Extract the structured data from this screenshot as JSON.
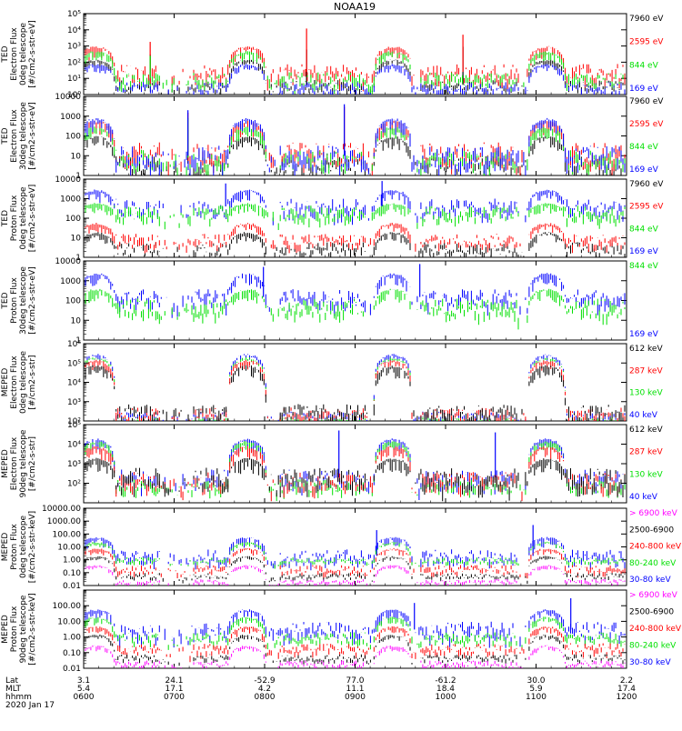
{
  "title": "NOAA19",
  "footer": {
    "row_labels": [
      "Lat",
      "MLT",
      "hhmm"
    ],
    "date": "2020 Jan 17",
    "lat": [
      "3.1",
      "24.1",
      "-52.9",
      "77.0",
      "-61.2",
      "30.0",
      "2.2"
    ],
    "mlt": [
      "5.4",
      "17.1",
      "4.2",
      "11.1",
      "18.4",
      "5.9",
      "17.4"
    ],
    "hhmm": [
      "0600",
      "0700",
      "0800",
      "0900",
      "1000",
      "1100",
      "1200"
    ]
  },
  "colors": {
    "black": "#000000",
    "red": "#ff0000",
    "green": "#00e000",
    "blue": "#0000ff",
    "magenta": "#ff00ff"
  },
  "chart_data": [
    {
      "type": "line",
      "panel": "ted-electron-0deg",
      "ylabel": [
        "TED",
        "Electron Flux",
        "0deg telescope",
        "[#/cm2-s-str-eV]"
      ],
      "yscale": "log",
      "ylim": [
        1,
        100000
      ],
      "ticks": [
        {
          "v": 1,
          "t": "10⁰"
        },
        {
          "v": 10,
          "t": "10¹"
        },
        {
          "v": 100,
          "t": "10²"
        },
        {
          "v": 1000,
          "t": "10³"
        },
        {
          "v": 10000,
          "t": "10⁴"
        },
        {
          "v": 100000,
          "t": "10⁵"
        }
      ],
      "x_range": [
        "0600",
        "1200"
      ],
      "series": [
        {
          "name": "7960 eV",
          "color": "black",
          "base": 4,
          "peak": 150,
          "spikes": [
            300,
            600,
            900
          ],
          "noise": 0.3
        },
        {
          "name": "2595 eV",
          "color": "red",
          "base": 25,
          "peak": 1000,
          "spikes": [
            1800,
            12000,
            5000
          ],
          "noise": 0.5
        },
        {
          "name": "844 eV",
          "color": "green",
          "base": 10,
          "peak": 500,
          "spikes": [
            250
          ],
          "noise": 0.4
        },
        {
          "name": "169 eV",
          "color": "blue",
          "base": 3,
          "peak": 80,
          "spikes": [],
          "noise": 0.3
        }
      ]
    },
    {
      "type": "line",
      "panel": "ted-electron-30deg",
      "ylabel": [
        "TED",
        "Electron Flux",
        "30deg telescope",
        "[#/cm2-s-str-eV]"
      ],
      "yscale": "log",
      "ylim": [
        1,
        10000
      ],
      "ticks": [
        {
          "v": 1,
          "t": "1"
        },
        {
          "v": 10,
          "t": "10"
        },
        {
          "v": 100,
          "t": "100"
        },
        {
          "v": 1000,
          "t": "1000"
        },
        {
          "v": 10000,
          "t": "10000"
        }
      ],
      "x_range": [
        "0600",
        "1200"
      ],
      "series": [
        {
          "name": "7960 eV",
          "color": "black",
          "base": 4,
          "peak": 100,
          "spikes": [
            200
          ],
          "noise": 0.4
        },
        {
          "name": "2595 eV",
          "color": "red",
          "base": 15,
          "peak": 600,
          "spikes": [
            1500,
            3000
          ],
          "noise": 0.5
        },
        {
          "name": "844 eV",
          "color": "green",
          "base": 8,
          "peak": 300,
          "spikes": [
            800
          ],
          "noise": 0.4
        },
        {
          "name": "169 eV",
          "color": "blue",
          "base": 10,
          "peak": 800,
          "spikes": [
            2000,
            4000
          ],
          "noise": 0.5
        }
      ]
    },
    {
      "type": "line",
      "panel": "ted-proton-0deg",
      "ylabel": [
        "TED",
        "Proton Flux",
        "0deg telescope",
        "[#/cm2-s-str-eV]"
      ],
      "yscale": "log",
      "ylim": [
        1,
        10000
      ],
      "ticks": [
        {
          "v": 1,
          "t": "1"
        },
        {
          "v": 10,
          "t": "10"
        },
        {
          "v": 100,
          "t": "100"
        },
        {
          "v": 1000,
          "t": "1000"
        },
        {
          "v": 10000,
          "t": "10000"
        }
      ],
      "x_range": [
        "0600",
        "1200"
      ],
      "series": [
        {
          "name": "7960 eV",
          "color": "black",
          "base": 3,
          "peak": 20,
          "spikes": [],
          "noise": 0.3
        },
        {
          "name": "2595 eV",
          "color": "red",
          "base": 8,
          "peak": 60,
          "spikes": [],
          "noise": 0.3
        },
        {
          "name": "169 eV",
          "color": "blue",
          "base": 400,
          "peak": 3000,
          "spikes": [
            6000,
            8000
          ],
          "noise": 0.4
        },
        {
          "name": "844 eV",
          "color": "green",
          "base": 200,
          "peak": 600,
          "spikes": [],
          "noise": 0.35
        }
      ]
    },
    {
      "type": "line",
      "panel": "ted-proton-30deg",
      "ylabel": [
        "TED",
        "Proton Flux",
        "30deg telescope",
        "[#/cm2-s-str-eV]"
      ],
      "yscale": "log",
      "ylim": [
        1,
        10000
      ],
      "ticks": [
        {
          "v": 1,
          "t": "1"
        },
        {
          "v": 10,
          "t": "10"
        },
        {
          "v": 100,
          "t": "100"
        },
        {
          "v": 1000,
          "t": "1000"
        },
        {
          "v": 10000,
          "t": "10000"
        }
      ],
      "x_range": [
        "0600",
        "1200"
      ],
      "series": [
        {
          "name": "169 eV",
          "color": "blue",
          "base": 150,
          "peak": 2500,
          "spikes": [
            5000,
            7000
          ],
          "noise": 0.4
        },
        {
          "name": "844 eV",
          "color": "green",
          "base": 50,
          "peak": 400,
          "spikes": [],
          "noise": 0.4
        }
      ]
    },
    {
      "type": "line",
      "panel": "meped-electron-0deg",
      "ylabel": [
        "MEPED",
        "Electron Flux",
        "0deg telescope",
        "[#/cm2-s-str]"
      ],
      "yscale": "log",
      "ylim": [
        100,
        1000000
      ],
      "ticks": [
        {
          "v": 100,
          "t": "10²"
        },
        {
          "v": 1000,
          "t": "10³"
        },
        {
          "v": 10000,
          "t": "10⁴"
        },
        {
          "v": 100000,
          "t": "10⁵"
        },
        {
          "v": 1000000,
          "t": "10⁶"
        }
      ],
      "x_range": [
        "0600",
        "1200"
      ],
      "series": [
        {
          "name": "40 keV",
          "color": "blue",
          "base": 200,
          "peak": 300000,
          "spikes": [],
          "noise": 0.2
        },
        {
          "name": "130 keV",
          "color": "green",
          "base": 120,
          "peak": 200000,
          "spikes": [],
          "noise": 0.1
        },
        {
          "name": "287 keV",
          "color": "red",
          "base": 250,
          "peak": 150000,
          "spikes": [],
          "noise": 0.3
        },
        {
          "name": "612 keV",
          "color": "black",
          "base": 300,
          "peak": 80000,
          "spikes": [],
          "noise": 0.4
        }
      ]
    },
    {
      "type": "line",
      "panel": "meped-electron-90deg",
      "ylabel": [
        "MEPED",
        "Electron Flux",
        "90deg telescope",
        "[#/cm2-s-str]"
      ],
      "yscale": "log",
      "ylim": [
        10,
        100000
      ],
      "ticks": [
        {
          "v": 100,
          "t": "10²"
        },
        {
          "v": 1000,
          "t": "10³"
        },
        {
          "v": 10000,
          "t": "10⁴"
        },
        {
          "v": 100000,
          "t": "10⁵"
        }
      ],
      "x_range": [
        "0600",
        "1200"
      ],
      "series": [
        {
          "name": "40 keV",
          "color": "blue",
          "base": 200,
          "peak": 20000,
          "spikes": [
            50000,
            40000
          ],
          "noise": 0.4
        },
        {
          "name": "130 keV",
          "color": "green",
          "base": 80,
          "peak": 15000,
          "spikes": [],
          "noise": 0.3
        },
        {
          "name": "287 keV",
          "color": "red",
          "base": 150,
          "peak": 8000,
          "spikes": [],
          "noise": 0.4
        },
        {
          "name": "612 keV",
          "color": "black",
          "base": 200,
          "peak": 2000,
          "spikes": [],
          "noise": 0.5
        }
      ]
    },
    {
      "type": "line",
      "panel": "meped-proton-0deg",
      "ylabel": [
        "MEPED",
        "Proton Flux",
        "0deg telescope",
        "[#/cm2-s-str-keV]"
      ],
      "yscale": "log",
      "ylim": [
        0.01,
        10000
      ],
      "ticks": [
        {
          "v": 0.01,
          "t": "0.01"
        },
        {
          "v": 0.1,
          "t": "0.10"
        },
        {
          "v": 1,
          "t": "1.00"
        },
        {
          "v": 10,
          "t": "10.00"
        },
        {
          "v": 100,
          "t": "100.00"
        },
        {
          "v": 1000,
          "t": "1000.00"
        },
        {
          "v": 10000,
          "t": "10000.00"
        }
      ],
      "x_range": [
        "0600",
        "1200"
      ],
      "series": [
        {
          "name": "30-80 keV",
          "color": "blue",
          "base": 2,
          "peak": 60,
          "spikes": [
            200,
            500
          ],
          "noise": 0.5
        },
        {
          "name": "80-240 keV",
          "color": "green",
          "base": 1,
          "peak": 25,
          "spikes": [],
          "noise": 0.2
        },
        {
          "name": "240-800 keV",
          "color": "red",
          "base": 0.2,
          "peak": 8,
          "spikes": [],
          "noise": 0.3
        },
        {
          "name": "2500-6900",
          "color": "black",
          "base": 0.06,
          "peak": 2,
          "spikes": [],
          "noise": 0.2
        },
        {
          "name": "> 6900 keV",
          "color": "magenta",
          "base": 0.02,
          "peak": 0.4,
          "spikes": [],
          "noise": 0.2
        }
      ]
    },
    {
      "type": "line",
      "panel": "meped-proton-90deg",
      "ylabel": [
        "MEPED",
        "Proton Flux",
        "90deg telescope",
        "[#/cm2-s-str-keV]"
      ],
      "yscale": "log",
      "ylim": [
        0.01,
        1000
      ],
      "ticks": [
        {
          "v": 0.01,
          "t": "0.01"
        },
        {
          "v": 0.1,
          "t": "0.10"
        },
        {
          "v": 1,
          "t": "1.00"
        },
        {
          "v": 10,
          "t": "10.00"
        },
        {
          "v": 100,
          "t": "100.00"
        }
      ],
      "x_range": [
        "0600",
        "1200"
      ],
      "series": [
        {
          "name": "30-80 keV",
          "color": "blue",
          "base": 3,
          "peak": 60,
          "spikes": [
            150,
            300
          ],
          "noise": 0.5
        },
        {
          "name": "80-240 keV",
          "color": "green",
          "base": 1,
          "peak": 20,
          "spikes": [],
          "noise": 0.3
        },
        {
          "name": "240-800 keV",
          "color": "red",
          "base": 0.2,
          "peak": 5,
          "spikes": [],
          "noise": 0.3
        },
        {
          "name": "2500-6900",
          "color": "black",
          "base": 0.05,
          "peak": 1.5,
          "spikes": [],
          "noise": 0.2
        },
        {
          "name": "> 6900 keV",
          "color": "magenta",
          "base": 0.02,
          "peak": 0.3,
          "spikes": [],
          "noise": 0.2
        }
      ]
    }
  ]
}
